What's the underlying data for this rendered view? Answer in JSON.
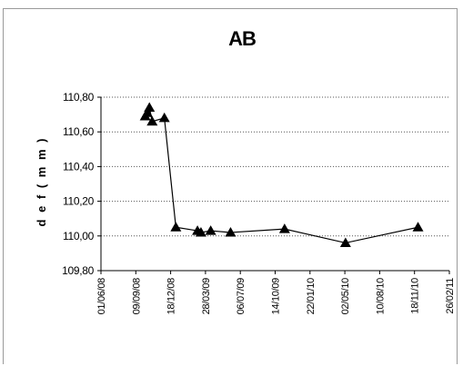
{
  "chart_data": {
    "type": "scatter",
    "title": "AB",
    "xlabel": "",
    "ylabel": "d e f  ( m m )",
    "ylim": [
      109.8,
      110.8
    ],
    "y_ticks": [
      "109,80",
      "110,00",
      "110,20",
      "110,40",
      "110,60",
      "110,80"
    ],
    "x_ticks": [
      "01/06/08",
      "09/09/08",
      "18/12/08",
      "28/03/09",
      "06/07/09",
      "14/10/09",
      "22/01/10",
      "02/05/10",
      "10/08/10",
      "18/11/10",
      "26/02/11"
    ],
    "xlim": [
      "01/06/08",
      "26/02/11"
    ],
    "grid": "horizontal dotted",
    "marker": "triangle",
    "series": [
      {
        "x": [
          "06/10/08",
          "12/10/08",
          "18/10/08",
          "26/10/08",
          "30/11/08",
          "02/01/09",
          "05/03/09",
          "15/03/09",
          "12/04/09",
          "08/06/09",
          "10/11/09",
          "04/05/10",
          "28/11/10"
        ],
        "values": [
          110.69,
          110.71,
          110.74,
          110.66,
          110.68,
          110.05,
          110.03,
          110.02,
          110.03,
          110.02,
          110.04,
          109.96,
          110.05
        ]
      }
    ]
  }
}
